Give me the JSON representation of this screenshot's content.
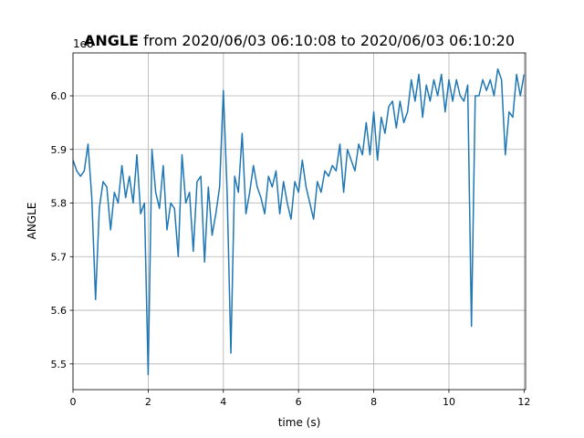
{
  "chart_data": {
    "type": "line",
    "title": {
      "bold": "ANGLE",
      "rest": "from 2020/06/03 06:10:08 to 2020/06/03 06:10:20"
    },
    "x_label": "time (s)",
    "y_label": "ANGLE",
    "offset_label": "1e8",
    "x": [
      0,
      0.1,
      0.2,
      0.3,
      0.4,
      0.5,
      0.6,
      0.7,
      0.8,
      0.9,
      1,
      1.1,
      1.2,
      1.3,
      1.4,
      1.5,
      1.6,
      1.7,
      1.8,
      1.9,
      2,
      2.1,
      2.2,
      2.3,
      2.4,
      2.5,
      2.6,
      2.7,
      2.8,
      2.9,
      3,
      3.1,
      3.2,
      3.3,
      3.4,
      3.5,
      3.6,
      3.7,
      3.8,
      3.9,
      4,
      4.1,
      4.2,
      4.3,
      4.4,
      4.5,
      4.6,
      4.7,
      4.8,
      4.9,
      5,
      5.1,
      5.2,
      5.3,
      5.4,
      5.5,
      5.6,
      5.7,
      5.8,
      5.9,
      6,
      6.1,
      6.2,
      6.3,
      6.4,
      6.5,
      6.6,
      6.7,
      6.8,
      6.9,
      7,
      7.1,
      7.2,
      7.3,
      7.4,
      7.5,
      7.6,
      7.7,
      7.8,
      7.9,
      8,
      8.1,
      8.2,
      8.3,
      8.4,
      8.5,
      8.6,
      8.7,
      8.8,
      8.9,
      9,
      9.1,
      9.2,
      9.3,
      9.4,
      9.5,
      9.6,
      9.7,
      9.8,
      9.9,
      10,
      10.1,
      10.2,
      10.3,
      10.4,
      10.5,
      10.6,
      10.7,
      10.8,
      10.9,
      11,
      11.1,
      11.2,
      11.3,
      11.4,
      11.5,
      11.6,
      11.7,
      11.8,
      11.9,
      12
    ],
    "series": [
      {
        "name": "ANGLE",
        "color": "#1f77b4",
        "values": [
          5.88,
          5.86,
          5.85,
          5.86,
          5.91,
          5.81,
          5.62,
          5.79,
          5.84,
          5.83,
          5.75,
          5.82,
          5.8,
          5.87,
          5.81,
          5.85,
          5.8,
          5.89,
          5.78,
          5.8,
          5.48,
          5.9,
          5.82,
          5.79,
          5.87,
          5.75,
          5.8,
          5.79,
          5.7,
          5.89,
          5.8,
          5.82,
          5.71,
          5.84,
          5.85,
          5.69,
          5.83,
          5.74,
          5.78,
          5.83,
          6.01,
          5.82,
          5.52,
          5.85,
          5.82,
          5.93,
          5.78,
          5.82,
          5.87,
          5.83,
          5.81,
          5.78,
          5.85,
          5.83,
          5.86,
          5.78,
          5.84,
          5.8,
          5.77,
          5.84,
          5.82,
          5.88,
          5.83,
          5.8,
          5.77,
          5.84,
          5.82,
          5.86,
          5.85,
          5.87,
          5.86,
          5.91,
          5.82,
          5.9,
          5.88,
          5.86,
          5.91,
          5.89,
          5.95,
          5.89,
          5.97,
          5.88,
          5.96,
          5.93,
          5.98,
          5.99,
          5.94,
          5.99,
          5.95,
          5.97,
          6.03,
          5.99,
          6.04,
          5.96,
          6.02,
          5.99,
          6.03,
          6,
          6.04,
          5.97,
          6.03,
          5.99,
          6.03,
          6,
          5.99,
          6.02,
          5.57,
          6,
          6,
          6.03,
          6.01,
          6.03,
          6,
          6.05,
          6.03,
          5.89,
          5.97,
          5.96,
          6.04,
          6,
          6.04
        ]
      }
    ],
    "xlim": [
      0,
      12.04
    ],
    "ylim": [
      5.452,
      6.08
    ],
    "xticks": [
      0,
      2,
      4,
      6,
      8,
      10,
      12
    ],
    "yticks": [
      5.5,
      5.6,
      5.7,
      5.8,
      5.9,
      {
        "value": 6,
        "label": "6.0"
      }
    ],
    "grid": true
  }
}
